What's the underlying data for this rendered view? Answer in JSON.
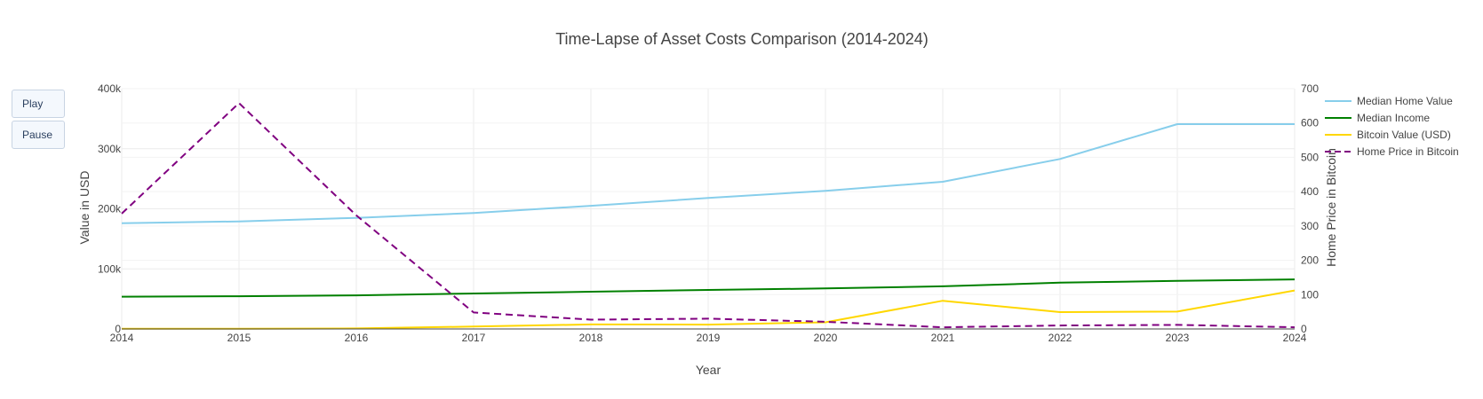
{
  "controls": {
    "play_label": "Play",
    "pause_label": "Pause"
  },
  "chart_data": {
    "type": "line",
    "title": "Time-Lapse of Asset Costs Comparison (2014-2024)",
    "xlabel": "Year",
    "ylabel": "Value in USD",
    "y2label": "Home Price in Bitcoin",
    "x": [
      2014,
      2015,
      2016,
      2017,
      2018,
      2019,
      2020,
      2021,
      2022,
      2023,
      2024
    ],
    "xlim": [
      2014,
      2024
    ],
    "ylim": [
      0,
      400000
    ],
    "y2lim": [
      0,
      700
    ],
    "x_ticks": [
      "2014",
      "2015",
      "2016",
      "2017",
      "2018",
      "2019",
      "2020",
      "2021",
      "2022",
      "2023",
      "2024"
    ],
    "y_ticks": [
      "0",
      "100k",
      "200k",
      "300k",
      "400k"
    ],
    "y_tick_values": [
      0,
      100000,
      200000,
      300000,
      400000
    ],
    "y2_ticks": [
      "0",
      "100",
      "200",
      "300",
      "400",
      "500",
      "600",
      "700"
    ],
    "y2_tick_values": [
      0,
      100,
      200,
      300,
      400,
      500,
      600,
      700
    ],
    "grid": true,
    "legend_position": "top-right",
    "series": [
      {
        "name": "Median Home Value",
        "axis": "y",
        "color": "#87ceeb",
        "dash": "solid",
        "values": [
          176000,
          179000,
          185000,
          193000,
          205000,
          218000,
          230000,
          245000,
          283000,
          341000,
          341000
        ]
      },
      {
        "name": "Median Income",
        "axis": "y",
        "color": "#008000",
        "dash": "solid",
        "values": [
          53700,
          54500,
          56000,
          59000,
          62000,
          65000,
          67500,
          71000,
          77000,
          80000,
          82500
        ]
      },
      {
        "name": "Bitcoin Value (USD)",
        "axis": "y",
        "color": "#ffd700",
        "dash": "solid",
        "values": [
          320,
          430,
          950,
          4000,
          7500,
          7200,
          11000,
          47000,
          28000,
          29000,
          64000
        ]
      },
      {
        "name": "Home Price in Bitcoin",
        "axis": "y2",
        "color": "#800080",
        "dash": "dashed",
        "values": [
          336,
          658,
          331,
          48,
          27,
          30,
          21,
          5,
          10,
          12,
          5
        ]
      }
    ]
  }
}
